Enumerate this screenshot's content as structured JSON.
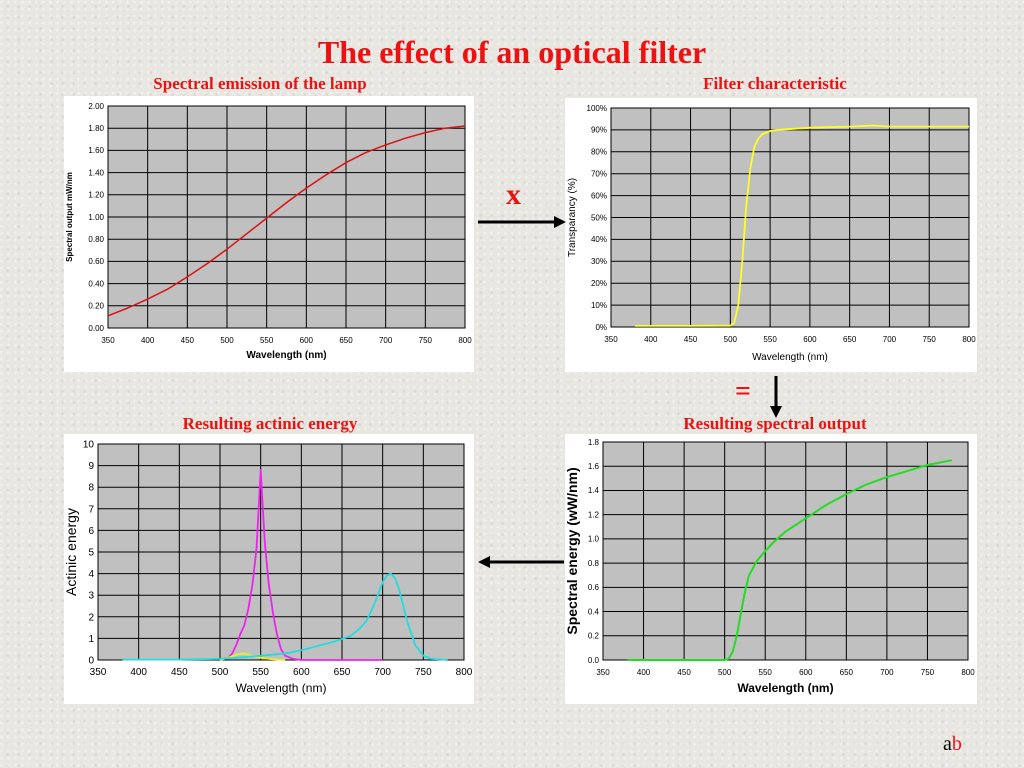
{
  "title": "The effect of an optical filter",
  "operators": {
    "multiply": "x",
    "equals": "="
  },
  "footer": {
    "a": "a",
    "b": "b"
  },
  "colors": {
    "lamp": "#dd1111",
    "filter": "#ffff22",
    "output": "#22dd22",
    "magenta": "#ee22ee",
    "cyan": "#22dddd",
    "yellow": "#eeee22",
    "plot_bg": "#c0c0c0"
  },
  "chart_data": [
    {
      "id": "lamp",
      "type": "line",
      "title": "Spectral emission of the lamp",
      "xlabel": "Wavelength (nm)",
      "ylabel": "Spectral output mW/nm",
      "xlim": [
        350,
        800
      ],
      "ylim": [
        0,
        2
      ],
      "xticks": [
        350,
        400,
        450,
        500,
        550,
        600,
        650,
        700,
        750,
        800
      ],
      "xtick_labels": [
        "350",
        "400",
        "450",
        "500",
        "550",
        "600",
        "650",
        "700",
        "750",
        "800"
      ],
      "yticks": [
        0,
        0.2,
        0.4,
        0.6,
        0.8,
        1.0,
        1.2,
        1.4,
        1.6,
        1.8,
        2.0
      ],
      "ytick_labels": [
        "0.00",
        "0.20",
        "0.40",
        "0.60",
        "0.80",
        "1.00",
        "1.20",
        "1.40",
        "1.60",
        "1.80",
        "2.00"
      ],
      "grid": true,
      "series": [
        {
          "color": "#dd1111",
          "x": [
            350,
            375,
            400,
            425,
            450,
            475,
            500,
            525,
            550,
            575,
            600,
            625,
            650,
            675,
            700,
            725,
            750,
            775,
            800
          ],
          "y": [
            0.11,
            0.18,
            0.26,
            0.35,
            0.46,
            0.58,
            0.71,
            0.85,
            0.99,
            1.13,
            1.26,
            1.38,
            1.49,
            1.58,
            1.65,
            1.71,
            1.76,
            1.8,
            1.82
          ]
        }
      ]
    },
    {
      "id": "filter",
      "type": "line",
      "title": "Filter characteristic",
      "xlabel": "Wavelength (nm)",
      "ylabel": "Transparancy (%)",
      "xlim": [
        350,
        800
      ],
      "ylim": [
        0,
        100
      ],
      "xticks": [
        350,
        400,
        450,
        500,
        550,
        600,
        650,
        700,
        750,
        800
      ],
      "xtick_labels": [
        "350",
        "400",
        "450",
        "500",
        "550",
        "600",
        "650",
        "700",
        "750",
        "800"
      ],
      "yticks": [
        0,
        10,
        20,
        30,
        40,
        50,
        60,
        70,
        80,
        90,
        100
      ],
      "ytick_labels": [
        "0%",
        "10%",
        "20%",
        "30%",
        "40%",
        "50%",
        "60%",
        "70%",
        "80%",
        "90%",
        "100%"
      ],
      "grid": true,
      "series": [
        {
          "color": "#ffff22",
          "x": [
            380,
            450,
            500,
            505,
            510,
            515,
            520,
            525,
            530,
            535,
            540,
            550,
            560,
            580,
            600,
            650,
            680,
            700,
            750,
            800
          ],
          "y": [
            0.5,
            0.5,
            0.6,
            2,
            10,
            30,
            55,
            72,
            82,
            86,
            88,
            89.5,
            90,
            90.5,
            91,
            91.5,
            92,
            91.5,
            91.5,
            91.5
          ]
        }
      ]
    },
    {
      "id": "actinic",
      "type": "line",
      "title": "Resulting actinic energy",
      "xlabel": "Wavelength (nm)",
      "ylabel": "Actinic energy",
      "xlim": [
        350,
        800
      ],
      "ylim": [
        0,
        10
      ],
      "xticks": [
        350,
        400,
        450,
        500,
        550,
        600,
        650,
        700,
        750,
        800
      ],
      "xtick_labels": [
        "350",
        "400",
        "450",
        "500",
        "550",
        "600",
        "650",
        "700",
        "750",
        "800"
      ],
      "yticks": [
        0,
        1,
        2,
        3,
        4,
        5,
        6,
        7,
        8,
        9,
        10
      ],
      "ytick_labels": [
        "0",
        "1",
        "2",
        "3",
        "4",
        "5",
        "6",
        "7",
        "8",
        "9",
        "10"
      ],
      "grid": true,
      "series": [
        {
          "color": "#ee22ee",
          "x": [
            500,
            510,
            515,
            520,
            525,
            530,
            535,
            540,
            545,
            550,
            555,
            560,
            565,
            570,
            575,
            580,
            590,
            600,
            650,
            700
          ],
          "y": [
            0,
            0.1,
            0.3,
            0.7,
            1.2,
            1.6,
            2.4,
            3.5,
            5.2,
            8.8,
            5.5,
            3.5,
            2.2,
            1.2,
            0.5,
            0.2,
            0.05,
            0,
            0,
            0
          ]
        },
        {
          "color": "#eeee22",
          "x": [
            500,
            510,
            520,
            530,
            540,
            550,
            560,
            570,
            580
          ],
          "y": [
            0,
            0.1,
            0.25,
            0.3,
            0.2,
            0.1,
            0.05,
            0.02,
            0
          ]
        },
        {
          "color": "#22dddd",
          "x": [
            380,
            450,
            500,
            520,
            550,
            580,
            600,
            620,
            640,
            660,
            670,
            680,
            690,
            700,
            705,
            710,
            715,
            720,
            730,
            740,
            750,
            760,
            780
          ],
          "y": [
            0.02,
            0.02,
            0.05,
            0.1,
            0.2,
            0.3,
            0.45,
            0.65,
            0.85,
            1.1,
            1.4,
            1.8,
            2.6,
            3.6,
            3.9,
            4.0,
            3.8,
            3.3,
            1.8,
            0.7,
            0.2,
            0.05,
            0
          ]
        }
      ]
    },
    {
      "id": "output",
      "type": "line",
      "title": "Resulting spectral output",
      "xlabel": "Wavelength (nm)",
      "ylabel": "Spectral energy (wW/nm)",
      "xlim": [
        350,
        800
      ],
      "ylim": [
        0,
        1.8
      ],
      "xticks": [
        350,
        400,
        450,
        500,
        550,
        600,
        650,
        700,
        750,
        800
      ],
      "xtick_labels": [
        "350",
        "400",
        "450",
        "500",
        "550",
        "600",
        "650",
        "700",
        "750",
        "800"
      ],
      "yticks": [
        0,
        0.2,
        0.4,
        0.6,
        0.8,
        1.0,
        1.2,
        1.4,
        1.6,
        1.8
      ],
      "ytick_labels": [
        "0.0",
        "0.2",
        "0.4",
        "0.6",
        "0.8",
        "1.0",
        "1.2",
        "1.4",
        "1.6",
        "1.8"
      ],
      "grid": true,
      "series": [
        {
          "color": "#22dd22",
          "x": [
            380,
            450,
            500,
            505,
            510,
            515,
            520,
            525,
            530,
            540,
            550,
            560,
            575,
            600,
            625,
            650,
            675,
            700,
            725,
            750,
            780
          ],
          "y": [
            0,
            0,
            0,
            0.01,
            0.07,
            0.2,
            0.39,
            0.56,
            0.7,
            0.82,
            0.9,
            0.97,
            1.06,
            1.17,
            1.28,
            1.37,
            1.45,
            1.51,
            1.56,
            1.61,
            1.65
          ]
        }
      ]
    }
  ]
}
